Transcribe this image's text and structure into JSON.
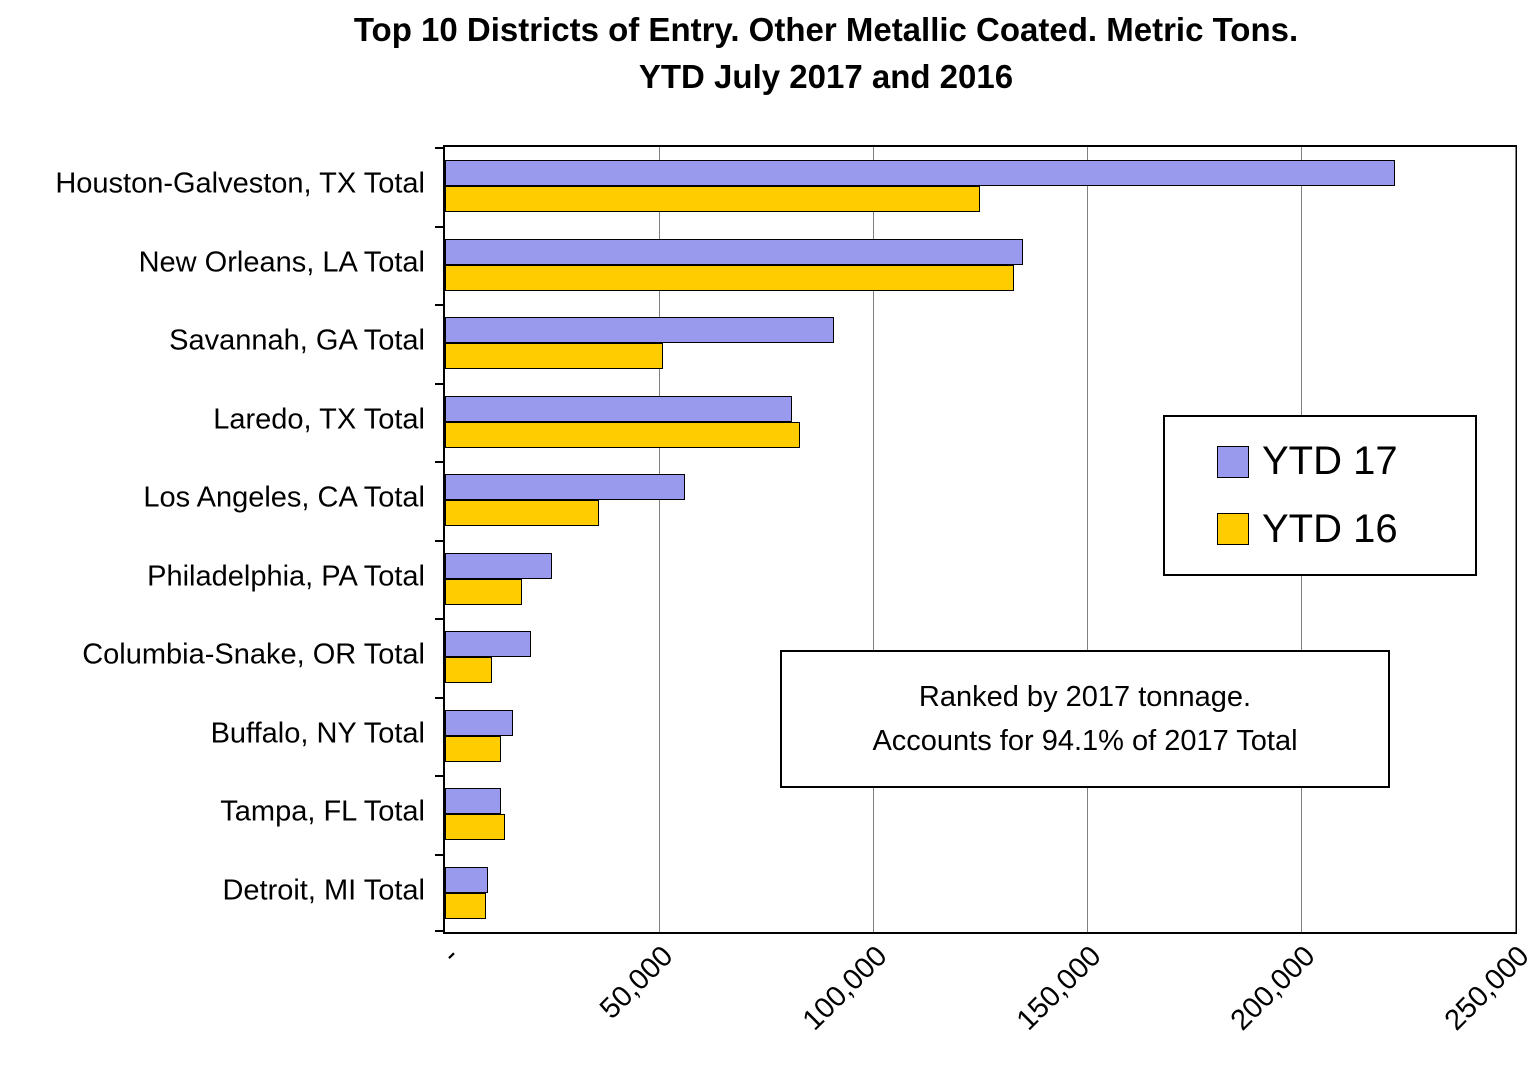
{
  "title": {
    "line1": "Top 10 Districts of Entry. Other Metallic Coated. Metric Tons.",
    "line2": "YTD July 2017 and 2016"
  },
  "annotation": {
    "line1": "Ranked by 2017 tonnage.",
    "line2": "Accounts for 94.1% of 2017 Total"
  },
  "chart_data": {
    "type": "bar",
    "orientation": "horizontal",
    "title": "Top 10 Districts of Entry. Other Metallic Coated. Metric Tons. YTD July 2017 and 2016",
    "categories": [
      "Houston-Galveston, TX Total",
      "New Orleans, LA Total",
      "Savannah, GA Total",
      "Laredo, TX Total",
      "Los Angeles, CA Total",
      "Philadelphia, PA Total",
      "Columbia-Snake, OR Total",
      "Buffalo, NY Total",
      "Tampa, FL Total",
      "Detroit, MI Total"
    ],
    "series": [
      {
        "name": "YTD 17",
        "color": "#9999EE",
        "values": [
          222000,
          135000,
          91000,
          81000,
          56000,
          25000,
          20000,
          16000,
          13000,
          10000
        ]
      },
      {
        "name": "YTD 16",
        "color": "#FFCC00",
        "values": [
          125000,
          133000,
          51000,
          83000,
          36000,
          18000,
          11000,
          13000,
          14000,
          9500
        ]
      }
    ],
    "xlim": [
      0,
      250000
    ],
    "xticks": [
      0,
      50000,
      100000,
      150000,
      200000,
      250000
    ],
    "xtick_labels": [
      "-",
      "50,000",
      "100,000",
      "150,000",
      "200,000",
      "250,000"
    ],
    "grid": true,
    "legend_position": "middle-right",
    "bar_border_color": "#000000",
    "gridline_color": "#808080"
  }
}
